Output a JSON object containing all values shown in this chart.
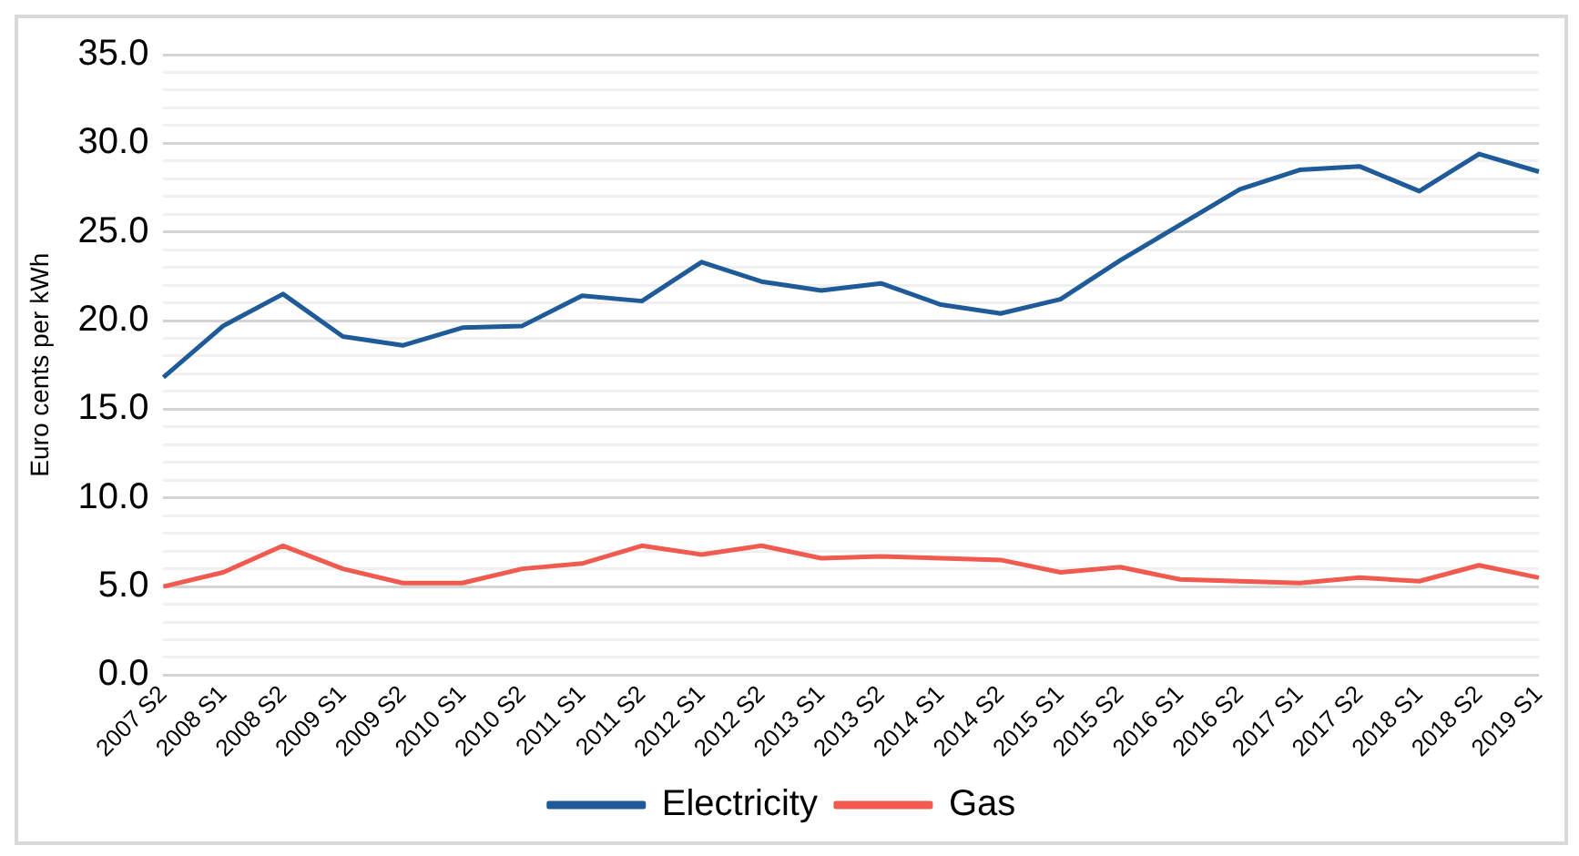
{
  "chart_data": {
    "type": "line",
    "ylabel": "Euro cents per kWh",
    "categories": [
      "2007 S2",
      "2008 S1",
      "2008 S2",
      "2009 S1",
      "2009 S2",
      "2010 S1",
      "2010 S2",
      "2011 S1",
      "2011 S2",
      "2012 S1",
      "2012 S2",
      "2013 S1",
      "2013 S2",
      "2014 S1",
      "2014 S2",
      "2015 S1",
      "2015 S2",
      "2016 S1",
      "2016 S2",
      "2017 S1",
      "2017 S2",
      "2018 S1",
      "2018 S2",
      "2019 S1"
    ],
    "series": [
      {
        "name": "Electricity",
        "color": "#1f5b99",
        "values": [
          16.8,
          19.7,
          21.5,
          19.1,
          18.6,
          19.6,
          19.7,
          21.4,
          21.1,
          23.3,
          22.2,
          21.7,
          22.1,
          20.9,
          20.4,
          21.2,
          23.4,
          25.4,
          27.4,
          28.5,
          28.7,
          27.3,
          29.4,
          28.4
        ]
      },
      {
        "name": "Gas",
        "color": "#f05a4f",
        "values": [
          5.0,
          5.8,
          7.3,
          6.0,
          5.2,
          5.2,
          6.0,
          6.3,
          7.3,
          6.8,
          7.3,
          6.6,
          6.7,
          6.6,
          6.5,
          5.8,
          6.1,
          5.4,
          5.3,
          5.2,
          5.5,
          5.3,
          6.2,
          5.5
        ]
      }
    ],
    "ylim": [
      0,
      35
    ],
    "yticks": [
      {
        "value": 0,
        "label": "0.0"
      },
      {
        "value": 1,
        "label": null
      },
      {
        "value": 2,
        "label": null
      },
      {
        "value": 3,
        "label": null
      },
      {
        "value": 4,
        "label": null
      },
      {
        "value": 5,
        "label": "5.0"
      },
      {
        "value": 6,
        "label": null
      },
      {
        "value": 7,
        "label": null
      },
      {
        "value": 8,
        "label": null
      },
      {
        "value": 9,
        "label": null
      },
      {
        "value": 10,
        "label": "10.0"
      },
      {
        "value": 11,
        "label": null
      },
      {
        "value": 12,
        "label": null
      },
      {
        "value": 13,
        "label": null
      },
      {
        "value": 14,
        "label": null
      },
      {
        "value": 15,
        "label": "15.0"
      },
      {
        "value": 16,
        "label": null
      },
      {
        "value": 17,
        "label": null
      },
      {
        "value": 18,
        "label": null
      },
      {
        "value": 19,
        "label": null
      },
      {
        "value": 20,
        "label": "20.0"
      },
      {
        "value": 21,
        "label": null
      },
      {
        "value": 22,
        "label": null
      },
      {
        "value": 23,
        "label": null
      },
      {
        "value": 24,
        "label": null
      },
      {
        "value": 25,
        "label": "25.0"
      },
      {
        "value": 26,
        "label": null
      },
      {
        "value": 27,
        "label": null
      },
      {
        "value": 28,
        "label": null
      },
      {
        "value": 29,
        "label": null
      },
      {
        "value": 30,
        "label": "30.0"
      },
      {
        "value": 31,
        "label": null
      },
      {
        "value": 32,
        "label": null
      },
      {
        "value": 33,
        "label": null
      },
      {
        "value": 34,
        "label": null
      },
      {
        "value": 35,
        "label": "35.0"
      }
    ],
    "grid": "y",
    "legend": "bottom",
    "marker": "none",
    "line_style": "solid"
  }
}
